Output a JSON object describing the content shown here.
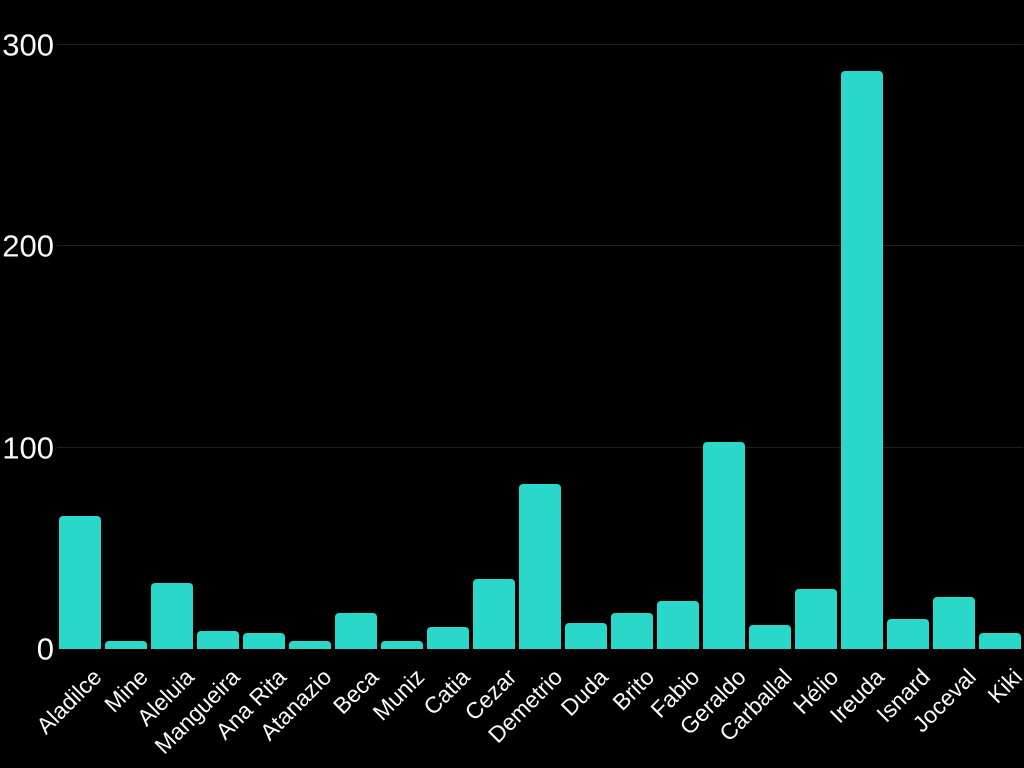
{
  "chart_data": {
    "type": "bar",
    "title": "",
    "xlabel": "",
    "ylabel": "",
    "categories": [
      "Aladilce",
      "Mine",
      "Aleluia",
      "Mangueira",
      "Ana Rita",
      "Atanazio",
      "Beca",
      "Muniz",
      "Catia",
      "Cezar",
      "Demetrio",
      "Duda",
      "Brito",
      "Fabio",
      "Geraldo",
      "Carballal",
      "Hélio",
      "Ireuda",
      "Isnard",
      "Joceval",
      "Kiki"
    ],
    "values": [
      66,
      4,
      33,
      9,
      8,
      4,
      18,
      4,
      11,
      35,
      82,
      13,
      18,
      24,
      103,
      12,
      30,
      287,
      15,
      26,
      8
    ],
    "ylim": [
      0,
      300
    ],
    "yticks": [
      0,
      100,
      200,
      300
    ],
    "grid": true,
    "legend": false,
    "layout": {
      "x_label_rotation_deg": -45,
      "bar_corner_radius_px": 4
    },
    "colors": {
      "background": "#000000",
      "bar": "#29d8c8",
      "text": "#fafafa",
      "gridline": "#1e1e1e"
    }
  }
}
